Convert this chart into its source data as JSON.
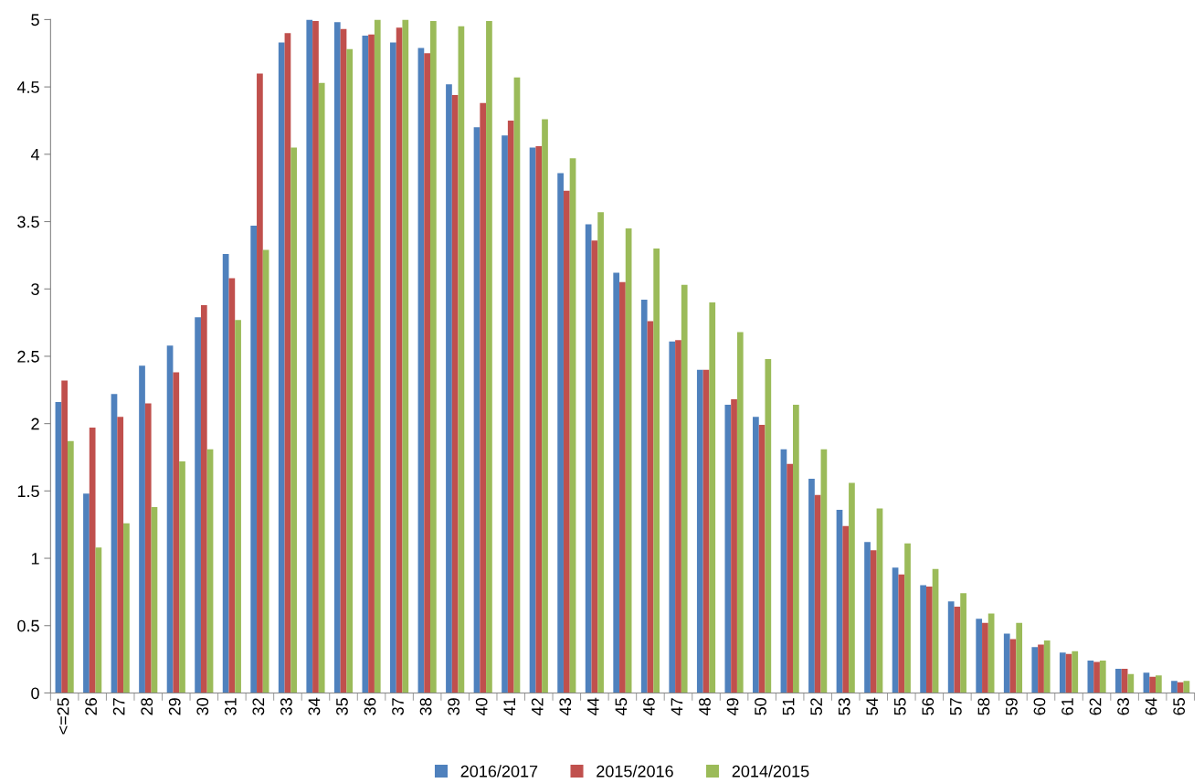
{
  "chart_data": {
    "type": "bar",
    "categories": [
      "<=25",
      "26",
      "27",
      "28",
      "29",
      "30",
      "31",
      "32",
      "33",
      "34",
      "35",
      "36",
      "37",
      "38",
      "39",
      "40",
      "41",
      "42",
      "43",
      "44",
      "45",
      "46",
      "47",
      "48",
      "49",
      "50",
      "51",
      "52",
      "53",
      "54",
      "55",
      "56",
      "57",
      "58",
      "59",
      "60",
      "61",
      "62",
      "63",
      "64",
      "65"
    ],
    "series": [
      {
        "name": "2016/2017",
        "color": "#4f81bd",
        "values": [
          2.16,
          1.48,
          2.22,
          2.43,
          2.58,
          2.79,
          3.26,
          3.47,
          4.83,
          5.0,
          4.98,
          4.88,
          4.83,
          4.79,
          4.52,
          4.2,
          4.14,
          4.05,
          3.86,
          3.48,
          3.12,
          2.92,
          2.61,
          2.4,
          2.14,
          2.05,
          1.81,
          1.59,
          1.36,
          1.12,
          0.93,
          0.8,
          0.68,
          0.55,
          0.44,
          0.34,
          0.3,
          0.24,
          0.18,
          0.15,
          0.09
        ]
      },
      {
        "name": "2015/2016",
        "color": "#c0504d",
        "values": [
          2.32,
          1.97,
          2.05,
          2.15,
          2.38,
          2.88,
          3.08,
          4.6,
          4.9,
          4.99,
          4.93,
          4.89,
          4.94,
          4.75,
          4.44,
          4.38,
          4.25,
          4.06,
          3.73,
          3.36,
          3.05,
          2.76,
          2.62,
          2.4,
          2.18,
          1.99,
          1.7,
          1.47,
          1.24,
          1.06,
          0.88,
          0.79,
          0.64,
          0.52,
          0.4,
          0.36,
          0.29,
          0.23,
          0.18,
          0.12,
          0.08
        ]
      },
      {
        "name": "2014/2015",
        "color": "#9bbb59",
        "values": [
          1.87,
          1.08,
          1.26,
          1.38,
          1.72,
          1.81,
          2.77,
          3.29,
          4.05,
          4.53,
          4.78,
          5.0,
          5.0,
          4.99,
          4.95,
          4.99,
          4.57,
          4.26,
          3.97,
          3.57,
          3.45,
          3.3,
          3.03,
          2.9,
          2.68,
          2.48,
          2.14,
          1.81,
          1.56,
          1.37,
          1.11,
          0.92,
          0.74,
          0.59,
          0.52,
          0.39,
          0.31,
          0.24,
          0.14,
          0.13,
          0.09
        ]
      }
    ],
    "ylim": [
      0,
      5
    ],
    "yticks": [
      0,
      0.5,
      1,
      1.5,
      2,
      2.5,
      3,
      3.5,
      4,
      4.5,
      5
    ],
    "grid": false,
    "legend": "bottom"
  }
}
